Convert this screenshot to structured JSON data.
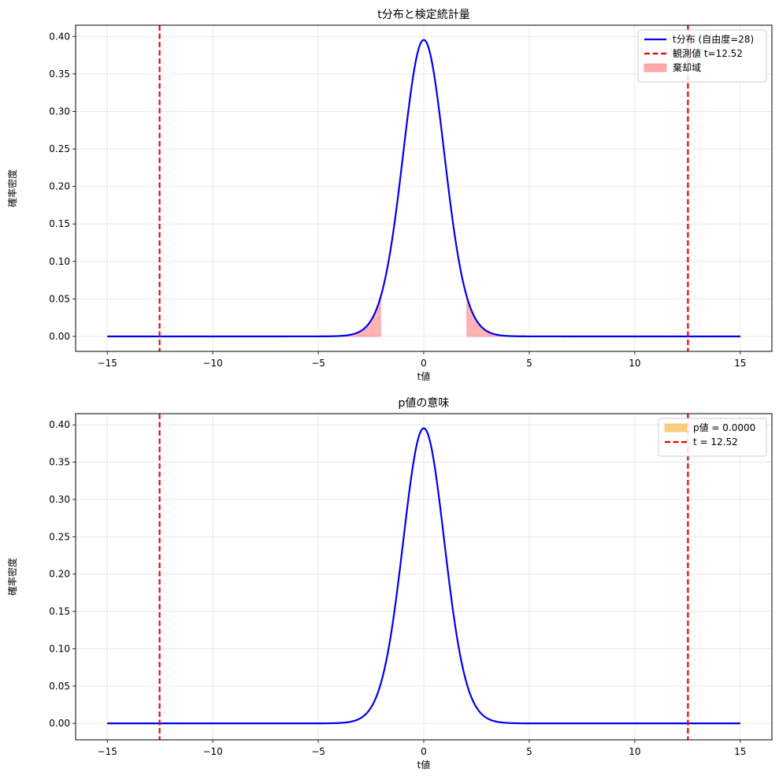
{
  "chart_data": [
    {
      "type": "line",
      "title": "t分布と検定統計量",
      "xlabel": "t値",
      "ylabel": "確率密度",
      "xlim": [
        -16.5,
        16.5
      ],
      "ylim": [
        -0.02,
        0.415
      ],
      "xticks": [
        -15,
        -10,
        -5,
        0,
        5,
        10,
        15
      ],
      "xtick_labels": [
        "−15",
        "−10",
        "−5",
        "0",
        "5",
        "10",
        "15"
      ],
      "yticks": [
        0.0,
        0.05,
        0.1,
        0.15,
        0.2,
        0.25,
        0.3,
        0.35,
        0.4
      ],
      "ytick_labels": [
        "0.00",
        "0.05",
        "0.10",
        "0.15",
        "0.20",
        "0.25",
        "0.30",
        "0.35",
        "0.40"
      ],
      "grid": true,
      "legend_position": "top-right",
      "distribution": {
        "name": "t",
        "df": 28,
        "x_range": [
          -15,
          15
        ]
      },
      "series": [
        {
          "name": "t分布 (自由度=28)",
          "kind": "curve",
          "color": "#0000ee"
        },
        {
          "name": "観測値 t=12.52",
          "kind": "vline",
          "x": [
            -12.52,
            12.52
          ],
          "color": "#ee0000"
        },
        {
          "name": "棄却域",
          "kind": "fill",
          "ranges": [
            [
              -15,
              -2.048
            ],
            [
              2.048,
              15
            ]
          ],
          "color": "#ff9a9a"
        }
      ]
    },
    {
      "type": "line",
      "title": "p値の意味",
      "xlabel": "t値",
      "ylabel": "確率密度",
      "xlim": [
        -16.5,
        16.5
      ],
      "ylim": [
        -0.022,
        0.415
      ],
      "xticks": [
        -15,
        -10,
        -5,
        0,
        5,
        10,
        15
      ],
      "xtick_labels": [
        "−15",
        "−10",
        "−5",
        "0",
        "5",
        "10",
        "15"
      ],
      "yticks": [
        0.0,
        0.05,
        0.1,
        0.15,
        0.2,
        0.25,
        0.3,
        0.35,
        0.4
      ],
      "ytick_labels": [
        "0.00",
        "0.05",
        "0.10",
        "0.15",
        "0.20",
        "0.25",
        "0.30",
        "0.35",
        "0.40"
      ],
      "grid": true,
      "legend_position": "top-right",
      "distribution": {
        "name": "t",
        "df": 28,
        "x_range": [
          -15,
          15
        ]
      },
      "series": [
        {
          "name": "p値 = 0.0000",
          "kind": "fill",
          "ranges": [
            [
              -15,
              -12.52
            ],
            [
              12.52,
              15
            ]
          ],
          "color": "#f5c56a"
        },
        {
          "name": "t = 12.52",
          "kind": "vline",
          "x": [
            -12.52,
            12.52
          ],
          "color": "#ee0000"
        },
        {
          "name": "t分布",
          "kind": "curve",
          "color": "#0000ee",
          "in_legend": false
        }
      ]
    }
  ]
}
